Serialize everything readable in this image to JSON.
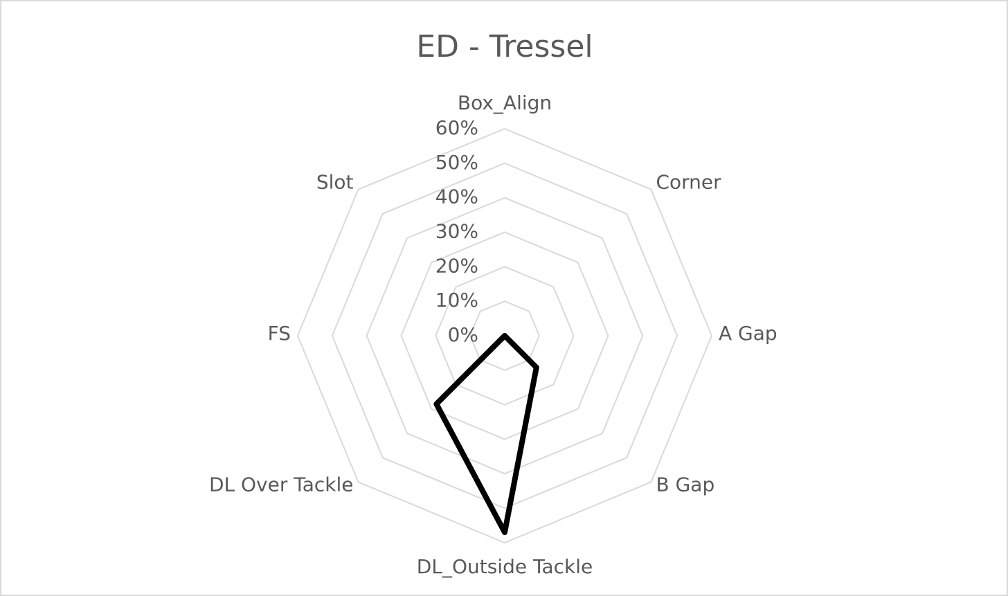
{
  "chart_data": {
    "type": "radar",
    "title": "ED - Tressel",
    "categories": [
      "Box_Align",
      "Corner",
      "A Gap",
      "B Gap",
      "DL_Outside Tackle",
      "DL Over Tackle",
      "FS",
      "Slot"
    ],
    "values": [
      0,
      0,
      0,
      13,
      57,
      28,
      0,
      0
    ],
    "color": "#000000",
    "rlim": [
      0,
      60
    ],
    "rticks": [
      {
        "value": 0,
        "label": "0%"
      },
      {
        "value": 10,
        "label": "10%"
      },
      {
        "value": 20,
        "label": "20%"
      },
      {
        "value": 30,
        "label": "30%"
      },
      {
        "value": 40,
        "label": "40%"
      },
      {
        "value": 50,
        "label": "50%"
      },
      {
        "value": 60,
        "label": "60%"
      }
    ],
    "grid": true
  }
}
